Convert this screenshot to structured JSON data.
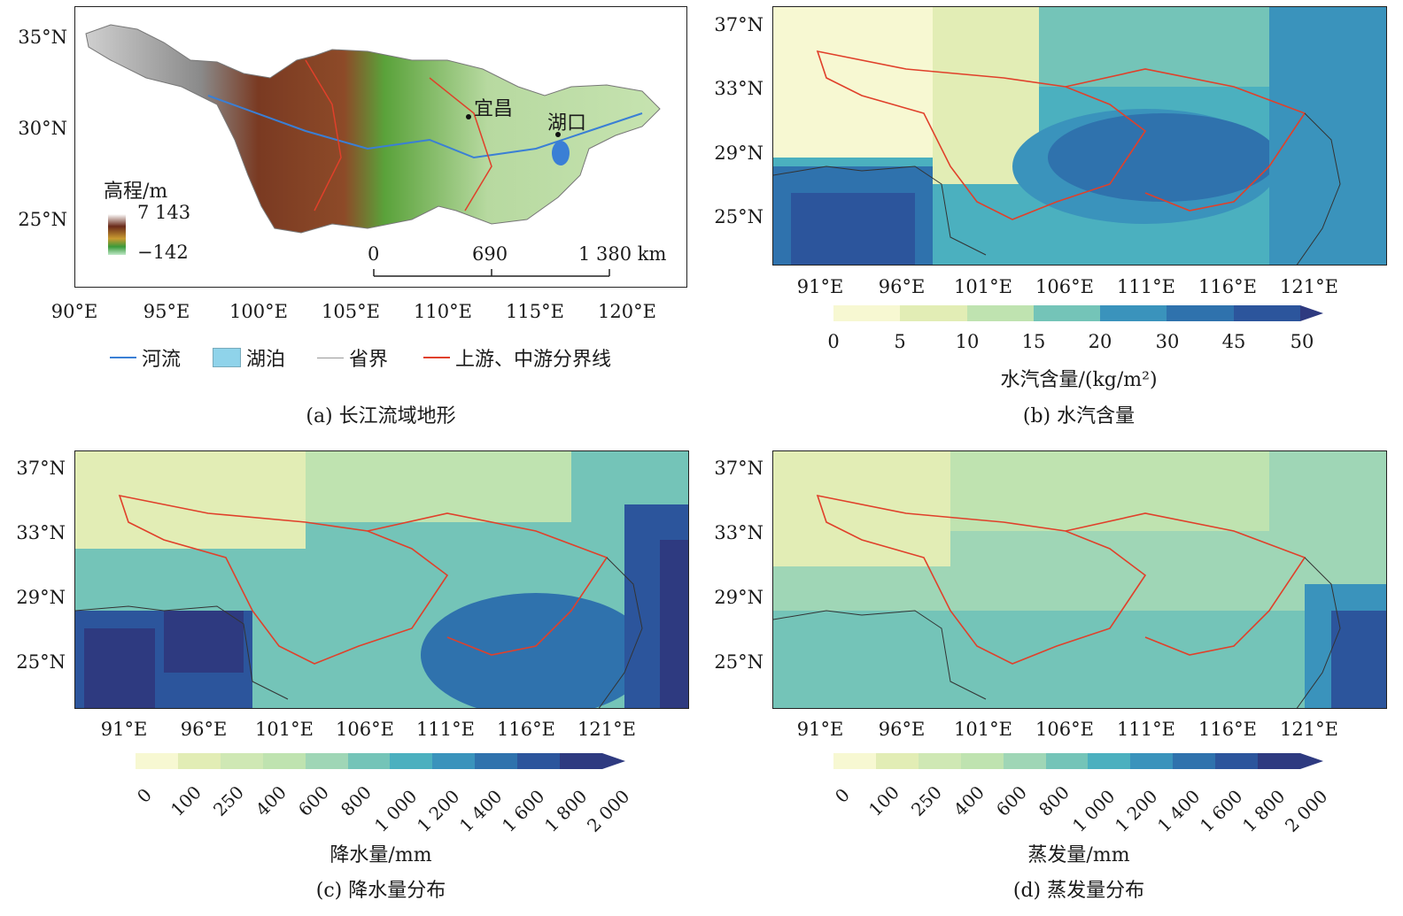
{
  "panels": {
    "a": {
      "caption": "(a) 长江流域地形",
      "lat_ticks": [
        "35°N",
        "30°N",
        "25°N"
      ],
      "lon_ticks": [
        "90°E",
        "95°E",
        "100°E",
        "105°E",
        "110°E",
        "115°E",
        "120°E"
      ],
      "cities": [
        {
          "name": "宜昌"
        },
        {
          "name": "湖口"
        }
      ],
      "elevation_title": "高程/m",
      "elevation_max": "7 143",
      "elevation_min": "−142",
      "scale_bar": [
        "0",
        "690",
        "1 380 km"
      ],
      "legend": [
        "河流",
        "湖泊",
        "省界",
        "上游、中游分界线"
      ]
    },
    "b": {
      "caption": "(b) 水汽含量",
      "cbar_title": "水汽含量/(kg/m²)",
      "cbar_labels": [
        "0",
        "5",
        "10",
        "15",
        "20",
        "30",
        "45",
        "50"
      ]
    },
    "c": {
      "caption": "(c) 降水量分布",
      "cbar_title": "降水量/mm",
      "cbar_labels": [
        "0",
        "100",
        "250",
        "400",
        "600",
        "800",
        "1 000",
        "1 200",
        "1 400",
        "1 600",
        "1 800",
        "2 000"
      ]
    },
    "d": {
      "caption": "(d) 蒸发量分布",
      "cbar_title": "蒸发量/mm",
      "cbar_labels": [
        "0",
        "100",
        "250",
        "400",
        "600",
        "800",
        "1 000",
        "1 200",
        "1 400",
        "1 600",
        "1 800",
        "2 000"
      ]
    }
  },
  "grid_lat_ticks": [
    "37°N",
    "33°N",
    "29°N",
    "25°N"
  ],
  "grid_lon_ticks": [
    "91°E",
    "96°E",
    "101°E",
    "106°E",
    "111°E",
    "116°E",
    "121°E"
  ],
  "colors": {
    "palette": [
      "#f7f8d2",
      "#e2edb5",
      "#bfe3b0",
      "#9fd6b6",
      "#74c4b8",
      "#4bb0bf",
      "#3a93bc",
      "#2f72ad",
      "#2c559c",
      "#2e3a80"
    ],
    "boundary": "#e0402a",
    "river": "#3a7fd5",
    "province": "#999999"
  }
}
